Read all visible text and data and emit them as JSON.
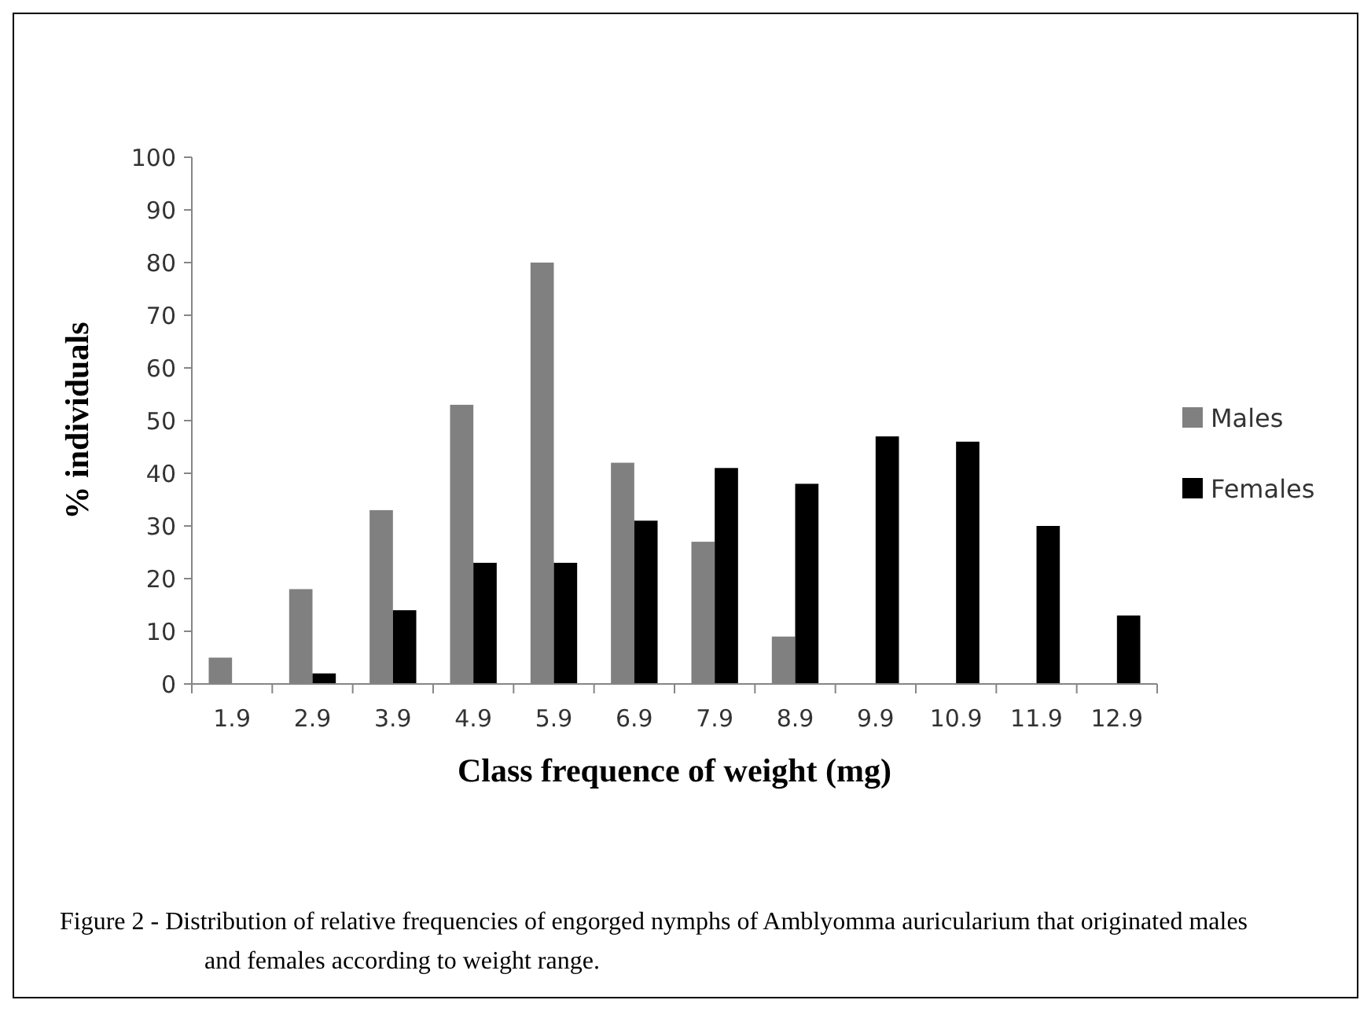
{
  "chart_data": {
    "type": "bar",
    "xlabel": "Class frequence of weight (mg)",
    "ylabel": "% individuals",
    "categories": [
      "1.9",
      "2.9",
      "3.9",
      "4.9",
      "5.9",
      "6.9",
      "7.9",
      "8.9",
      "9.9",
      "10.9",
      "11.9",
      "12.9"
    ],
    "series": [
      {
        "name": "Males",
        "color": "#808080",
        "values": [
          5,
          18,
          33,
          53,
          80,
          42,
          27,
          9,
          null,
          null,
          null,
          null
        ]
      },
      {
        "name": "Females",
        "color": "#000000",
        "values": [
          null,
          2,
          14,
          23,
          23,
          31,
          41,
          38,
          47,
          46,
          30,
          13
        ]
      }
    ],
    "ylim": [
      0,
      100
    ],
    "yticks": [
      0,
      10,
      20,
      30,
      40,
      50,
      60,
      70,
      80,
      90,
      100
    ],
    "grid": false,
    "legend": "right",
    "annotations": [
      "Figure 2 - Distribution of relative frequencies of engorged nymphs of Amblyomma auricularium that originated males and females according to weight range."
    ]
  }
}
